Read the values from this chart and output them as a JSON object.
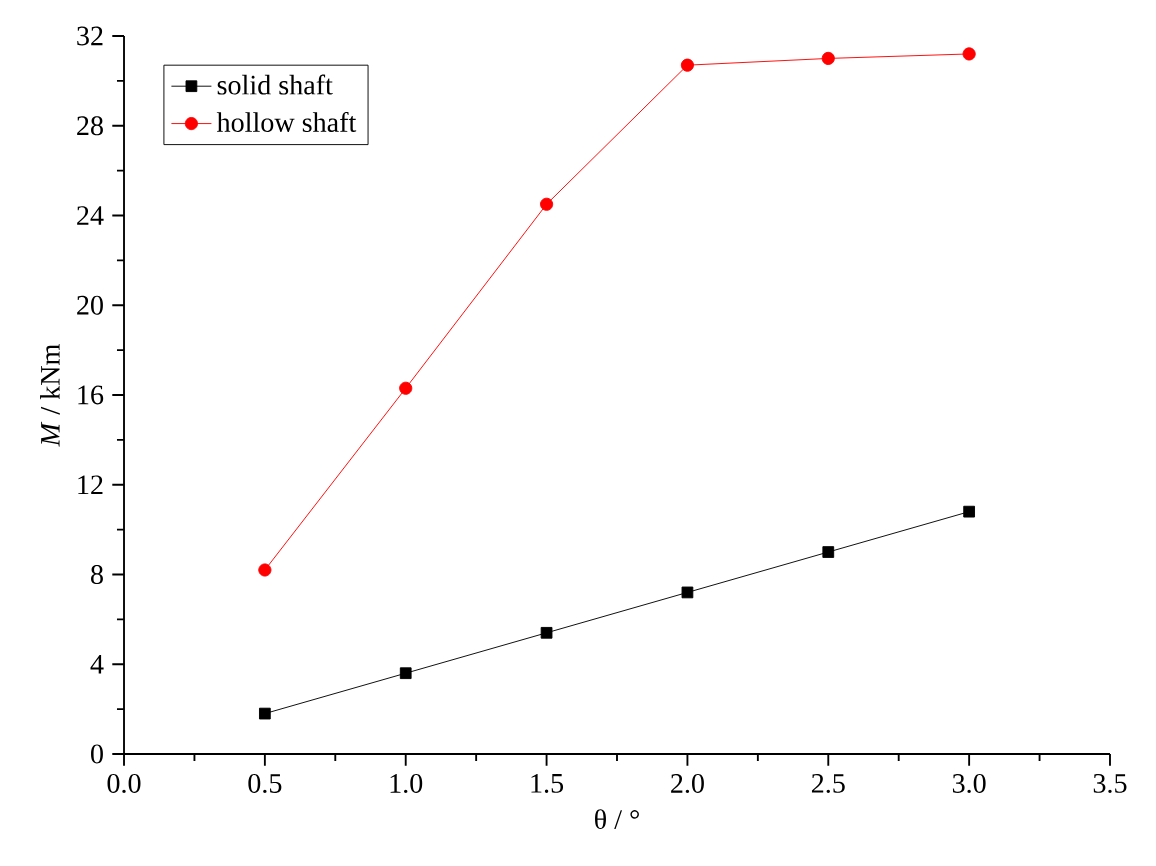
{
  "chart_data": {
    "type": "line",
    "xlabel": "θ / °",
    "ylabel": "*M* / kNm",
    "x": [
      0.5,
      1.0,
      1.5,
      2.0,
      2.5,
      3.0
    ],
    "series": [
      {
        "name": "solid shaft",
        "color": "#000000",
        "marker": "square",
        "values": [
          1.8,
          3.6,
          5.4,
          7.2,
          9.0,
          10.8
        ]
      },
      {
        "name": "hollow shaft",
        "color": "#ff0000",
        "marker": "circle",
        "values": [
          8.2,
          16.3,
          24.5,
          30.7,
          31.0,
          31.2
        ]
      }
    ],
    "xlim": [
      0.0,
      3.5
    ],
    "ylim": [
      0,
      32
    ],
    "xticks": [
      {
        "value": 0.0,
        "label": "0.0"
      },
      {
        "value": 0.5,
        "label": "0.5"
      },
      {
        "value": 1.0,
        "label": "1.0"
      },
      {
        "value": 1.5,
        "label": "1.5"
      },
      {
        "value": 2.0,
        "label": "2.0"
      },
      {
        "value": 2.5,
        "label": "2.5"
      },
      {
        "value": 3.0,
        "label": "3.0"
      },
      {
        "value": 3.5,
        "label": "3.5"
      }
    ],
    "yticks": [
      0,
      4,
      8,
      12,
      16,
      20,
      24,
      28,
      32
    ],
    "legend": "top left",
    "grid": false,
    "line_style": "solid"
  }
}
